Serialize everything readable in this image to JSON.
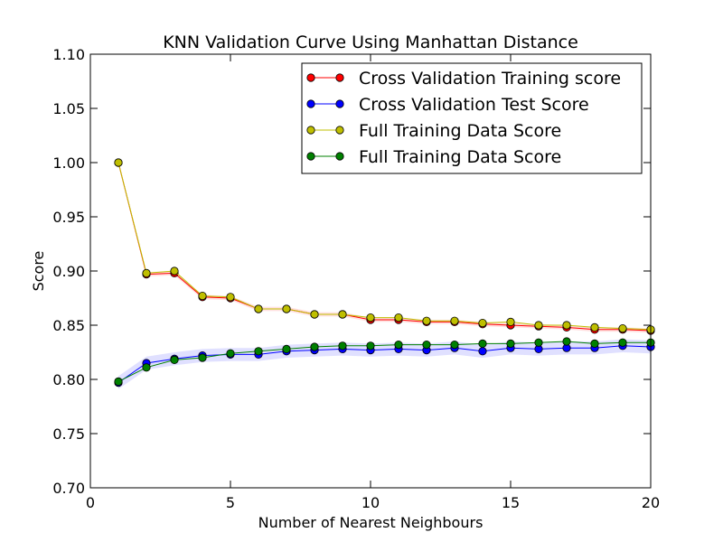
{
  "chart_data": {
    "type": "line",
    "title": "KNN Validation Curve Using Manhattan Distance",
    "xlabel": "Number of Nearest Neighbours",
    "ylabel": "Score",
    "xlim": [
      0,
      20
    ],
    "ylim": [
      0.7,
      1.1
    ],
    "xticks": [
      0,
      5,
      10,
      15,
      20
    ],
    "yticks": [
      0.7,
      0.75,
      0.8,
      0.85,
      0.9,
      0.95,
      1.0,
      1.05,
      1.1
    ],
    "xtick_labels": [
      "0",
      "5",
      "10",
      "15",
      "20"
    ],
    "ytick_labels": [
      "0.70",
      "0.75",
      "0.80",
      "0.85",
      "0.90",
      "0.95",
      "1.00",
      "1.05",
      "1.10"
    ],
    "grid": false,
    "legend_position": "top-right",
    "x": [
      1,
      2,
      3,
      4,
      5,
      6,
      7,
      8,
      9,
      10,
      11,
      12,
      13,
      14,
      15,
      16,
      17,
      18,
      19,
      20
    ],
    "series": [
      {
        "name": "Cross Validation Training score",
        "color": "#ff0000",
        "marker_color": "#ff0000",
        "values": [
          1.0,
          0.897,
          0.898,
          0.876,
          0.875,
          0.865,
          0.865,
          0.86,
          0.86,
          0.855,
          0.855,
          0.853,
          0.853,
          0.851,
          0.85,
          0.849,
          0.848,
          0.846,
          0.846,
          0.845
        ],
        "band": [
          0.002,
          0.002,
          0.002,
          0.002,
          0.002,
          0.002,
          0.002,
          0.002,
          0.002,
          0.002,
          0.002,
          0.002,
          0.002,
          0.002,
          0.002,
          0.002,
          0.002,
          0.002,
          0.002,
          0.002
        ],
        "band_color": "#ff0000"
      },
      {
        "name": "Cross Validation Test Score",
        "color": "#0000ff",
        "marker_color": "#0000ff",
        "values": [
          0.797,
          0.815,
          0.819,
          0.822,
          0.823,
          0.823,
          0.826,
          0.827,
          0.828,
          0.827,
          0.828,
          0.827,
          0.829,
          0.826,
          0.829,
          0.828,
          0.829,
          0.829,
          0.831,
          0.83
        ],
        "band": [
          0.006,
          0.006,
          0.006,
          0.006,
          0.006,
          0.006,
          0.006,
          0.006,
          0.006,
          0.006,
          0.006,
          0.006,
          0.006,
          0.006,
          0.006,
          0.006,
          0.006,
          0.006,
          0.006,
          0.006
        ],
        "band_color": "#0000ff"
      },
      {
        "name": "Full Training Data Score",
        "color": "#bfbf00",
        "marker_color": "#bfbf00",
        "values": [
          1.0,
          0.898,
          0.9,
          0.877,
          0.876,
          0.865,
          0.865,
          0.86,
          0.86,
          0.857,
          0.857,
          0.854,
          0.854,
          0.852,
          0.853,
          0.85,
          0.85,
          0.848,
          0.847,
          0.846
        ],
        "band": null,
        "band_color": null
      },
      {
        "name": "Full Training Data Score",
        "color": "#008000",
        "marker_color": "#008000",
        "values": [
          0.798,
          0.811,
          0.818,
          0.82,
          0.824,
          0.826,
          0.828,
          0.83,
          0.831,
          0.831,
          0.832,
          0.832,
          0.832,
          0.833,
          0.833,
          0.834,
          0.835,
          0.833,
          0.834,
          0.834
        ],
        "band": null,
        "band_color": null
      }
    ]
  }
}
